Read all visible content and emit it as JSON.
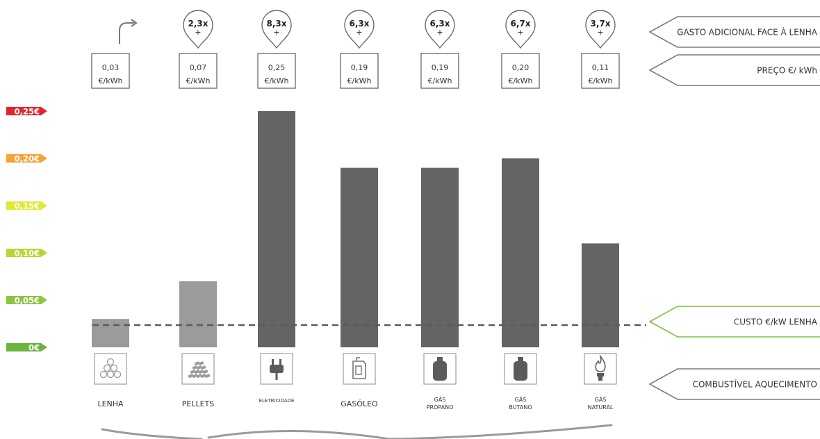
{
  "chart_data": {
    "type": "bar",
    "categories": [
      [
        "LENHA"
      ],
      [
        "PELLETS"
      ],
      [
        "ELETRICIDADE"
      ],
      [
        "GASÓLEO"
      ],
      [
        "GÁS",
        "PROPANO"
      ],
      [
        "GÁS",
        "BUTANO"
      ],
      [
        "GÁS",
        "NATURAL"
      ]
    ],
    "values": [
      0.03,
      0.07,
      0.25,
      0.19,
      0.19,
      0.2,
      0.11
    ],
    "price_labels": [
      "0,03",
      "0,07",
      "0,25",
      "0,19",
      "0,19",
      "0,20",
      "0,11"
    ],
    "price_unit": "€/kWh",
    "multipliers": [
      "",
      "2,3x",
      "8,3x",
      "6,3x",
      "6,3x",
      "6,7x",
      "3,7x"
    ],
    "multiplier_plus": "+",
    "icons": [
      "logs-icon",
      "pellets-icon",
      "plug-icon",
      "jerrycan-icon",
      "gas-bottle-icon",
      "gas-bottle-icon",
      "flame-icon"
    ],
    "y_scale": {
      "ticks": [
        "0,25€",
        "0,20€",
        "0,15€",
        "0,10€",
        "0,05€",
        "0€"
      ],
      "tick_values": [
        0.25,
        0.2,
        0.15,
        0.1,
        0.05,
        0
      ],
      "tick_colors": [
        "#e3262b",
        "#f5a236",
        "#e1e834",
        "#b9d534",
        "#8cc63f",
        "#6cb33f"
      ]
    },
    "reference_line": 0.025,
    "ylim": [
      0,
      0.25
    ],
    "colors": {
      "bar_light": "#9b9b9b",
      "bar_dark": "#636466",
      "accent_green": "#7fbf3f"
    }
  },
  "side_labels": {
    "extra_cost": "GASTO ADICIONAL FACE À LENHA",
    "price": "PREÇO",
    "price_unit": "€/ kWh",
    "firewood_cost": "CUSTO €/kW LENHA",
    "fuel": "COMBUSTÍVEL AQUECIMENTO"
  }
}
